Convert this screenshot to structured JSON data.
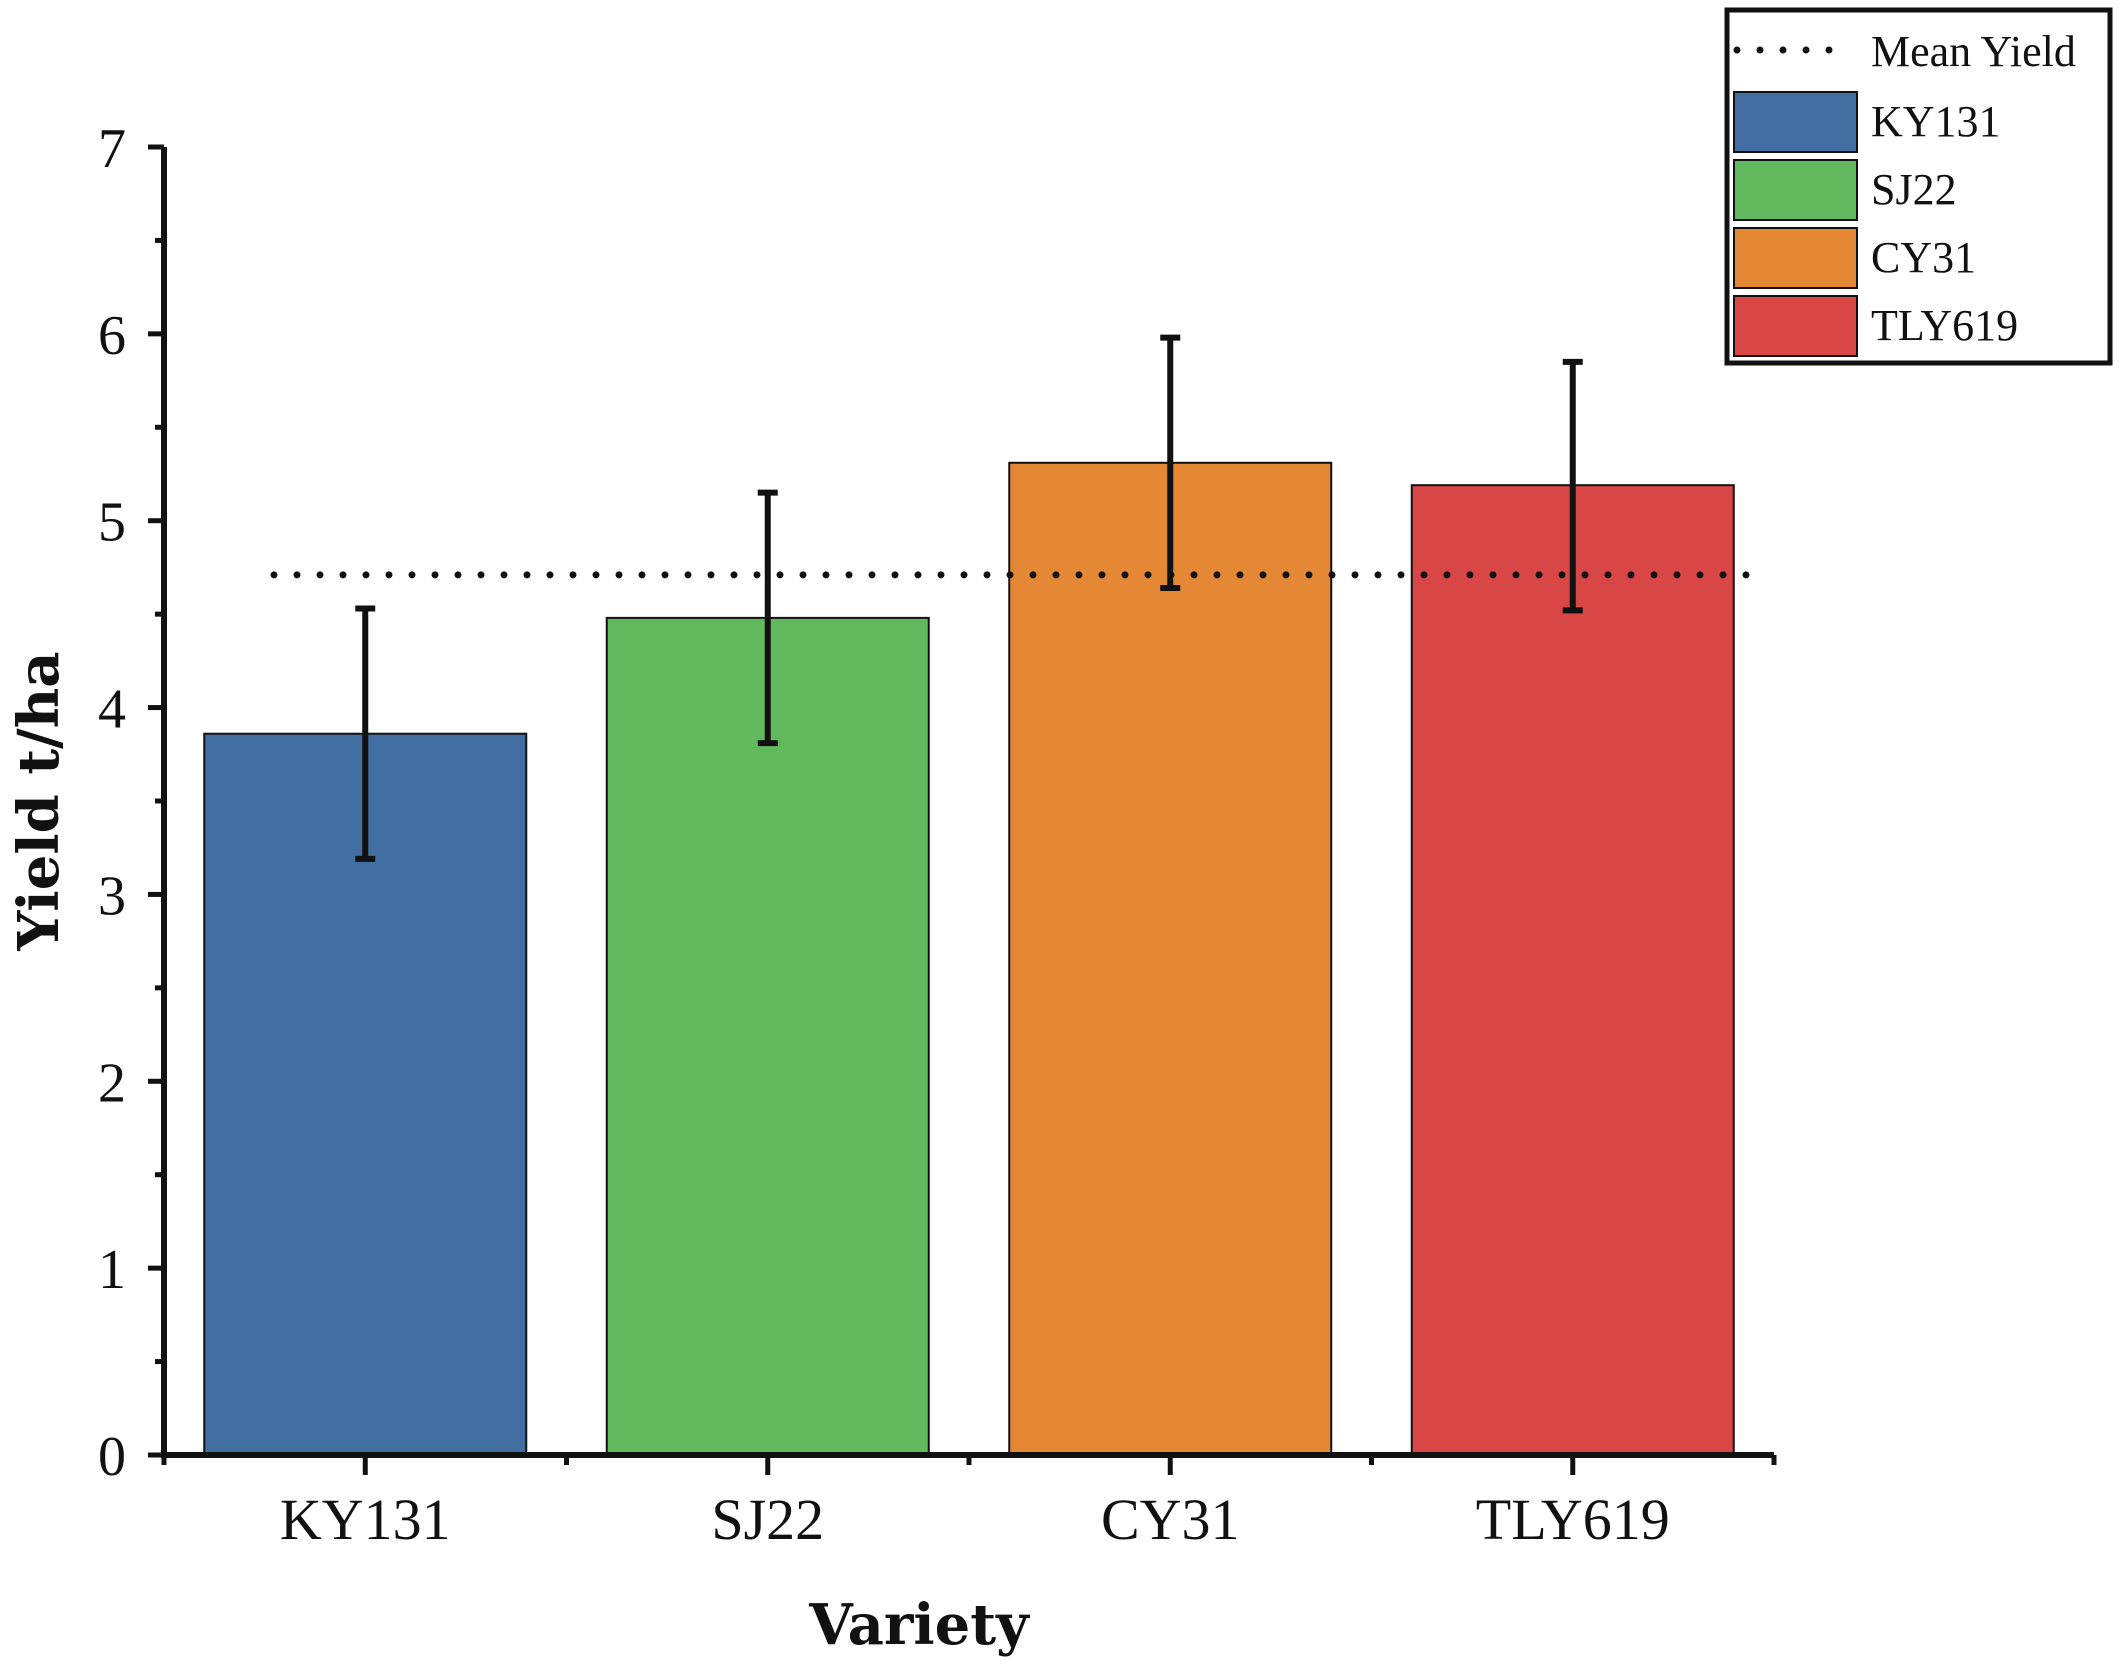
{
  "chart_data": {
    "type": "bar",
    "title": "",
    "xlabel": "Variety",
    "ylabel": "Yield t/ha",
    "ylim": [
      0,
      7
    ],
    "yticks": [
      "0",
      "1",
      "2",
      "3",
      "4",
      "5",
      "6",
      "7"
    ],
    "categories": [
      "KY131",
      "SJ22",
      "CY31",
      "TLY619"
    ],
    "values": [
      3.86,
      4.48,
      5.31,
      5.19
    ],
    "error_low": [
      3.19,
      3.81,
      4.64,
      4.52
    ],
    "error_high": [
      4.53,
      5.15,
      5.98,
      5.85
    ],
    "colors": [
      "#426ea1",
      "#61b85d",
      "#e48835",
      "#d84646"
    ],
    "mean_yield": 4.71,
    "legend": {
      "placement": "top-right",
      "mean_label": "Mean Yield",
      "items": [
        "KY131",
        "SJ22",
        "CY31",
        "TLY619"
      ]
    },
    "grid": false
  }
}
